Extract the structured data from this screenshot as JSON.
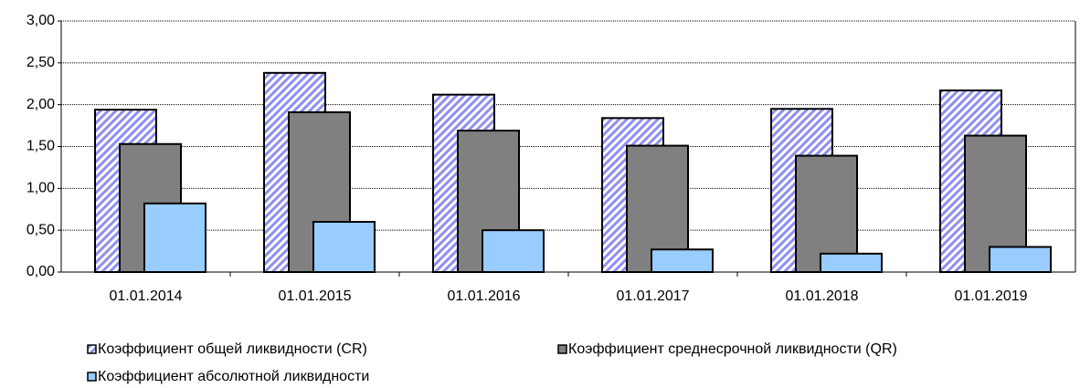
{
  "chart_data": {
    "type": "bar",
    "categories": [
      "01.01.2014",
      "01.01.2015",
      "01.01.2016",
      "01.01.2017",
      "01.01.2018",
      "01.01.2019"
    ],
    "series": [
      {
        "name": "Коэффициент общей ликвидности (CR)",
        "color": "#8f8fef",
        "hatch": true,
        "values": [
          1.94,
          2.38,
          2.12,
          1.84,
          1.95,
          2.17
        ]
      },
      {
        "name": "Коэффициент среднесрочной ликвидности (QR)",
        "color": "#808080",
        "values": [
          1.53,
          1.91,
          1.69,
          1.51,
          1.39,
          1.63
        ]
      },
      {
        "name": "Коэффициент абсолютной ликвидности",
        "color": "#99ccff",
        "values": [
          0.82,
          0.6,
          0.5,
          0.27,
          0.22,
          0.3
        ]
      }
    ],
    "ylim": [
      0,
      3
    ],
    "yticks": [
      {
        "value": 0,
        "label": "0,00"
      },
      {
        "value": 0.5,
        "label": "0,50"
      },
      {
        "value": 1,
        "label": "1,00"
      },
      {
        "value": 1.5,
        "label": "1,50"
      },
      {
        "value": 2,
        "label": "2,00"
      },
      {
        "value": 2.5,
        "label": "2,50"
      },
      {
        "value": 3,
        "label": "3,00"
      }
    ],
    "grid": true
  }
}
